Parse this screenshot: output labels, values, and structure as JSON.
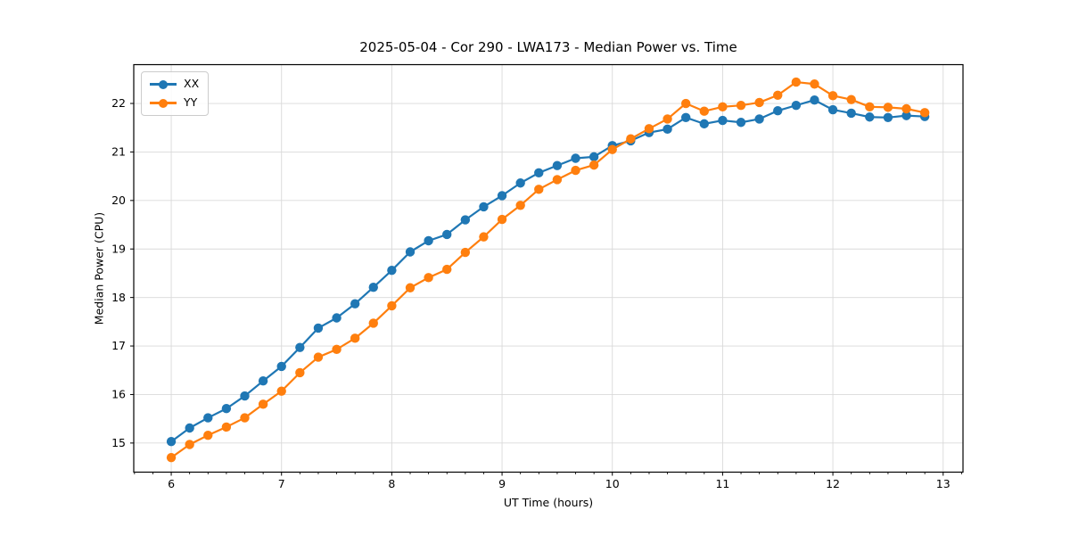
{
  "chart_data": {
    "type": "line",
    "title": "2025-05-04 - Cor 290 - LWA173 - Median Power vs. Time",
    "xlabel": "UT Time (hours)",
    "ylabel": "Median Power (CPU)",
    "xlim": [
      5.66,
      13.18
    ],
    "ylim": [
      14.4,
      22.8
    ],
    "x_major_ticks": [
      6,
      7,
      8,
      9,
      10,
      11,
      12,
      13
    ],
    "y_major_ticks": [
      15,
      16,
      17,
      18,
      19,
      20,
      21,
      22
    ],
    "x_minor_step": 0.16667,
    "grid": true,
    "legend_position": "upper-left",
    "grid_color": "#d9d9d9",
    "x": [
      6.0,
      6.1667,
      6.3333,
      6.5,
      6.6667,
      6.8333,
      7.0,
      7.1667,
      7.3333,
      7.5,
      7.6667,
      7.8333,
      8.0,
      8.1667,
      8.3333,
      8.5,
      8.6667,
      8.8333,
      9.0,
      9.1667,
      9.3333,
      9.5,
      9.6667,
      9.8333,
      10.0,
      10.1667,
      10.3333,
      10.5,
      10.6667,
      10.8333,
      11.0,
      11.1667,
      11.3333,
      11.5,
      11.6667,
      11.8333,
      12.0,
      12.1667,
      12.3333,
      12.5,
      12.6667,
      12.8333
    ],
    "series": [
      {
        "name": "XX",
        "color": "#1f77b4",
        "values": [
          15.03,
          15.31,
          15.52,
          15.71,
          15.97,
          16.28,
          16.58,
          16.97,
          17.37,
          17.58,
          17.87,
          18.21,
          18.56,
          18.94,
          19.17,
          19.3,
          19.6,
          19.87,
          20.1,
          20.36,
          20.57,
          20.72,
          20.87,
          20.9,
          21.13,
          21.23,
          21.4,
          21.47,
          21.71,
          21.58,
          21.65,
          21.61,
          21.68,
          21.85,
          21.96,
          22.07,
          21.87,
          21.8,
          21.72,
          21.71,
          21.75,
          21.73
        ]
      },
      {
        "name": "YY",
        "color": "#ff7f0e",
        "values": [
          14.7,
          14.97,
          15.16,
          15.33,
          15.52,
          15.8,
          16.07,
          16.45,
          16.77,
          16.93,
          17.16,
          17.47,
          17.83,
          18.2,
          18.41,
          18.58,
          18.93,
          19.25,
          19.61,
          19.9,
          20.23,
          20.43,
          20.62,
          20.73,
          21.05,
          21.27,
          21.48,
          21.68,
          22.0,
          21.84,
          21.93,
          21.96,
          22.02,
          22.17,
          22.44,
          22.4,
          22.16,
          22.08,
          21.93,
          21.92,
          21.89,
          21.81
        ]
      }
    ]
  }
}
